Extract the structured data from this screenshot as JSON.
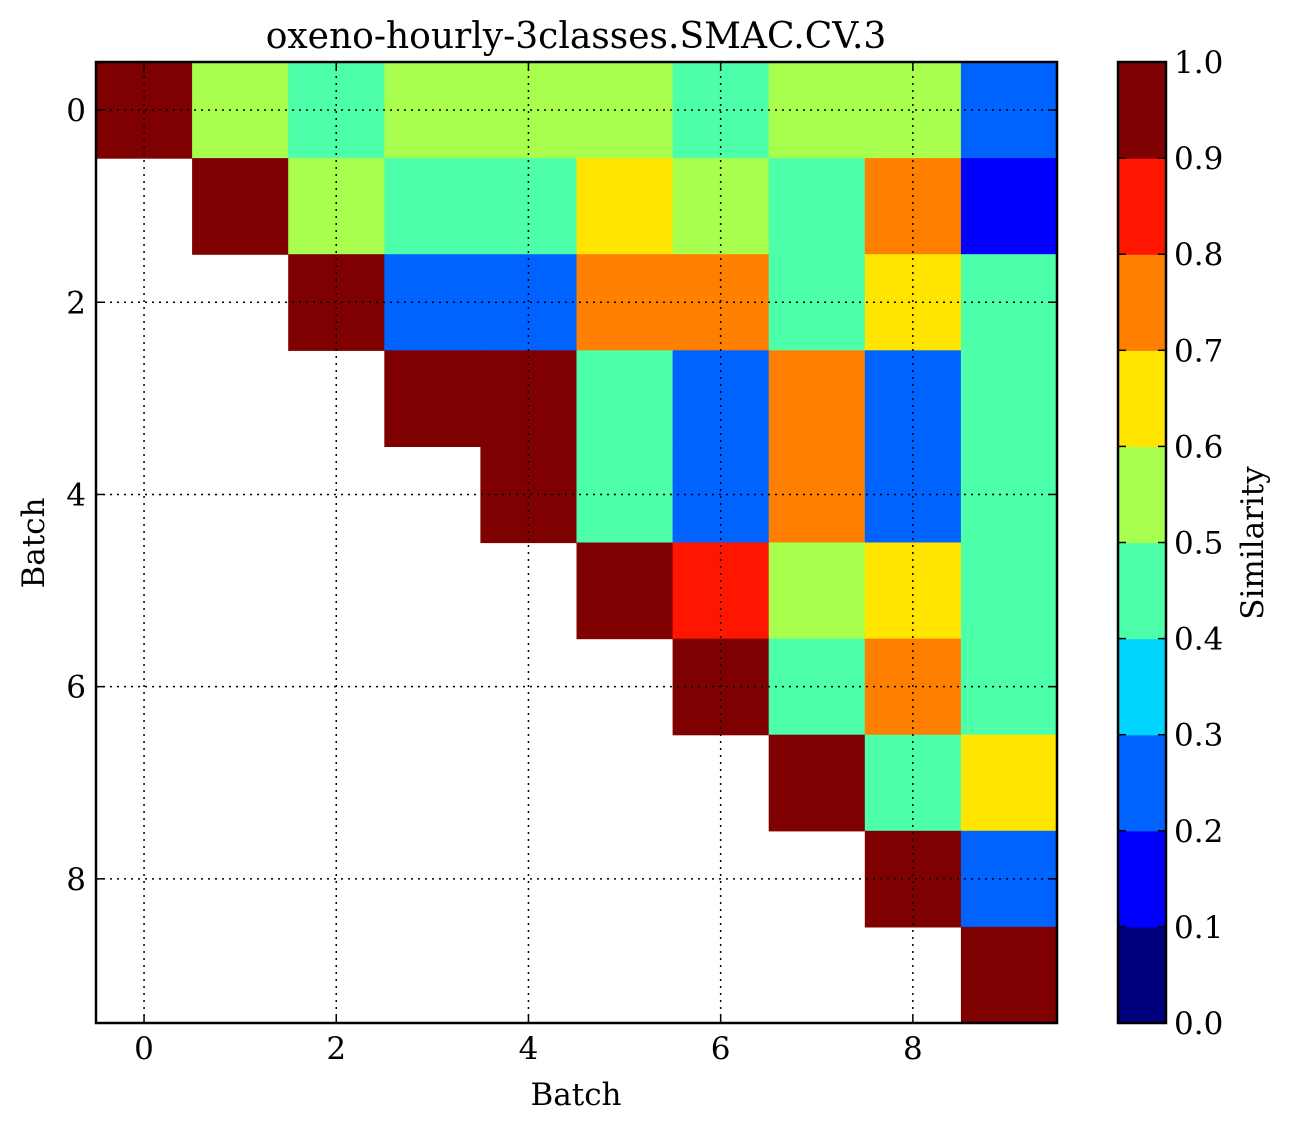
{
  "chart_data": {
    "type": "heatmap",
    "title": "oxeno-hourly-3classes.SMAC.CV.3",
    "xlabel": "Batch",
    "ylabel": "Batch",
    "x_ticks": [
      0,
      2,
      4,
      6,
      8
    ],
    "y_ticks": [
      0,
      2,
      4,
      6,
      8
    ],
    "grid": true,
    "colorbar": {
      "label": "Similarity",
      "ticks": [
        "0.0",
        "0.1",
        "0.2",
        "0.3",
        "0.4",
        "0.5",
        "0.6",
        "0.7",
        "0.8",
        "0.9",
        "1.0"
      ],
      "range": [
        0,
        1
      ],
      "levels": 10,
      "colors": [
        "#00007f",
        "#0000ff",
        "#0063ff",
        "#00d4ff",
        "#4dffa9",
        "#a9ff4d",
        "#ffe500",
        "#ff7f00",
        "#ff1600",
        "#7f0000"
      ]
    },
    "matrix": [
      [
        1.0,
        0.55,
        0.45,
        0.55,
        0.55,
        0.55,
        0.45,
        0.55,
        0.55,
        0.25
      ],
      [
        null,
        1.0,
        0.55,
        0.45,
        0.45,
        0.65,
        0.55,
        0.45,
        0.75,
        0.15
      ],
      [
        null,
        null,
        1.0,
        0.25,
        0.25,
        0.75,
        0.75,
        0.45,
        0.65,
        0.45
      ],
      [
        null,
        null,
        null,
        1.0,
        1.0,
        0.45,
        0.25,
        0.75,
        0.25,
        0.45
      ],
      [
        null,
        null,
        null,
        null,
        1.0,
        0.45,
        0.25,
        0.75,
        0.25,
        0.45
      ],
      [
        null,
        null,
        null,
        null,
        null,
        1.0,
        0.85,
        0.55,
        0.65,
        0.45
      ],
      [
        null,
        null,
        null,
        null,
        null,
        null,
        1.0,
        0.45,
        0.75,
        0.45
      ],
      [
        null,
        null,
        null,
        null,
        null,
        null,
        null,
        1.0,
        0.45,
        0.65
      ],
      [
        null,
        null,
        null,
        null,
        null,
        null,
        null,
        null,
        1.0,
        0.25
      ],
      [
        null,
        null,
        null,
        null,
        null,
        null,
        null,
        null,
        null,
        1.0
      ]
    ]
  }
}
